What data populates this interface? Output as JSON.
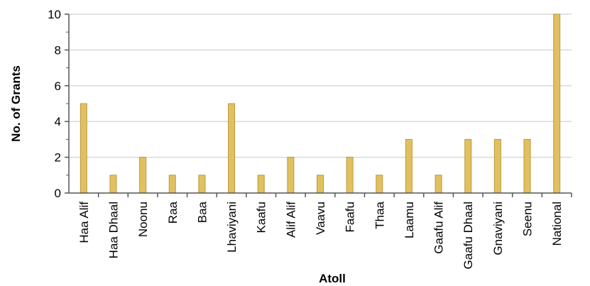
{
  "chart_data": {
    "type": "bar",
    "title": "",
    "xlabel": "Atoll",
    "ylabel": "No. of Grants",
    "ylim": [
      0,
      10
    ],
    "yticks": [
      0,
      2,
      4,
      6,
      8,
      10
    ],
    "grid": true,
    "categories": [
      "Haa Alif",
      "Haa Dhaal",
      "Noonu",
      "Raa",
      "Baa",
      "Lhaviyani",
      "Kaafu",
      "Alif Alif",
      "Vaavu",
      "Faafu",
      "Thaa",
      "Laamu",
      "Gaafu Alif",
      "Gaafu Dhaal",
      "Gnaviyani",
      "Seenu",
      "National"
    ],
    "values": [
      5,
      1,
      2,
      1,
      1,
      5,
      1,
      2,
      1,
      2,
      1,
      3,
      1,
      3,
      3,
      3,
      10
    ],
    "bar_color": "#e2c060",
    "bar_edge_color": "#b89a3c",
    "grid_color": "#d9d9d9"
  }
}
